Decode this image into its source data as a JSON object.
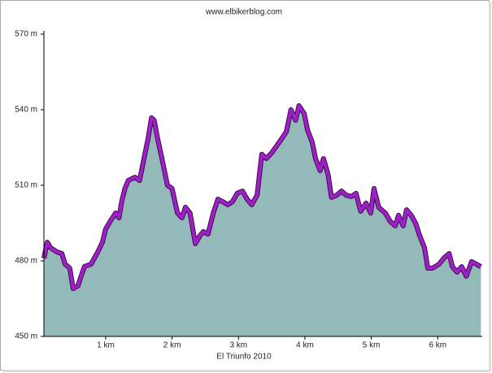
{
  "chart_data": {
    "type": "area",
    "title": "www.elbikerblog.com",
    "x_label": "El Triunfo 2010",
    "x": [
      0.07,
      0.12,
      0.17,
      0.27,
      0.34,
      0.39,
      0.46,
      0.51,
      0.58,
      0.63,
      0.68,
      0.78,
      0.88,
      0.95,
      1.0,
      1.07,
      1.15,
      1.2,
      1.24,
      1.29,
      1.34,
      1.44,
      1.51,
      1.59,
      1.64,
      1.69,
      1.73,
      1.78,
      1.86,
      1.93,
      2.0,
      2.08,
      2.15,
      2.2,
      2.27,
      2.35,
      2.42,
      2.47,
      2.54,
      2.62,
      2.69,
      2.76,
      2.84,
      2.91,
      2.98,
      3.06,
      3.13,
      3.2,
      3.28,
      3.35,
      3.42,
      3.5,
      3.57,
      3.64,
      3.72,
      3.79,
      3.86,
      3.91,
      3.99,
      4.04,
      4.11,
      4.16,
      4.23,
      4.28,
      4.35,
      4.4,
      4.48,
      4.55,
      4.62,
      4.7,
      4.77,
      4.84,
      4.92,
      4.99,
      5.04,
      5.11,
      5.21,
      5.28,
      5.36,
      5.41,
      5.48,
      5.53,
      5.6,
      5.67,
      5.72,
      5.8,
      5.85,
      5.92,
      6.02,
      6.09,
      6.17,
      6.22,
      6.29,
      6.36,
      6.43,
      6.51,
      6.58,
      6.65
    ],
    "values": [
      481.0,
      487.4,
      485.2,
      483.5,
      482.9,
      478.7,
      477.1,
      469.0,
      470.0,
      473.9,
      477.7,
      478.7,
      483.5,
      487.4,
      492.6,
      495.8,
      499.0,
      497.1,
      503.5,
      508.7,
      511.9,
      513.2,
      511.9,
      522.3,
      528.7,
      536.8,
      535.8,
      528.7,
      519.0,
      510.0,
      508.7,
      499.0,
      497.1,
      501.3,
      499.0,
      486.8,
      490.0,
      491.6,
      490.6,
      499.0,
      504.5,
      503.5,
      502.3,
      503.5,
      506.8,
      507.7,
      504.5,
      502.3,
      506.1,
      522.3,
      520.6,
      522.9,
      525.5,
      528.1,
      531.3,
      540.0,
      535.8,
      541.6,
      538.4,
      531.9,
      527.1,
      520.6,
      515.8,
      520.6,
      514.2,
      505.2,
      506.1,
      507.7,
      506.1,
      505.5,
      506.8,
      499.7,
      502.9,
      499.0,
      508.7,
      501.3,
      499.0,
      495.8,
      493.9,
      498.1,
      493.9,
      500.3,
      498.1,
      494.8,
      490.6,
      485.2,
      477.1,
      477.1,
      478.7,
      481.0,
      482.9,
      477.7,
      475.5,
      477.7,
      473.9,
      479.7,
      478.7,
      477.7
    ],
    "color": "#a020c8",
    "fill_color": "#93b9b9",
    "xlim": [
      0.07,
      6.67
    ],
    "xticks": [
      {
        "value": 1,
        "label": "1 km"
      },
      {
        "value": 2,
        "label": "2 km"
      },
      {
        "value": 3,
        "label": "3 km"
      },
      {
        "value": 4,
        "label": "4 km"
      },
      {
        "value": 5,
        "label": "5 km"
      },
      {
        "value": 6,
        "label": "6 km"
      }
    ],
    "ylim": [
      450,
      570
    ],
    "yticks": [
      {
        "value": 450,
        "label": "450 m"
      },
      {
        "value": 480,
        "label": "480 m"
      },
      {
        "value": 510,
        "label": "510 m"
      },
      {
        "value": 540,
        "label": "540 m"
      },
      {
        "value": 570,
        "label": "570 m"
      }
    ]
  }
}
